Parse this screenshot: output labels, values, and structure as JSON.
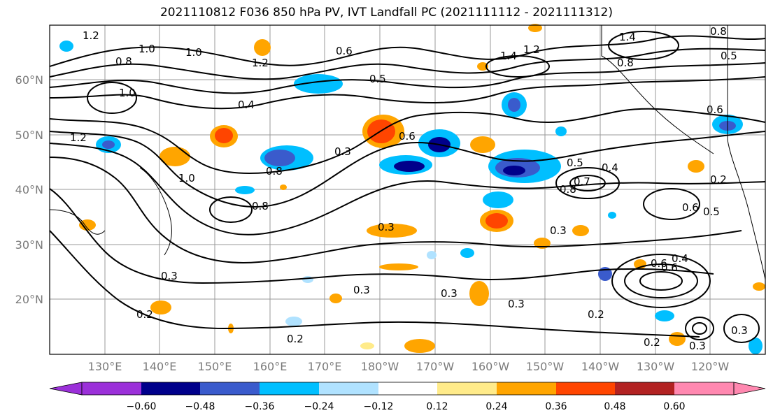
{
  "title": "2021110812 F036 850 hPa PV, IVT Landfall PC (2021111112 - 2021111312)",
  "map": {
    "lat_labels": [
      "60°N",
      "50°N",
      "40°N",
      "30°N",
      "20°N"
    ],
    "lon_labels": [
      "130°E",
      "140°E",
      "150°E",
      "160°E",
      "170°E",
      "180°W",
      "170°W",
      "160°W",
      "150°W",
      "140°W",
      "130°W",
      "120°W"
    ],
    "contour_labels": [
      "1.2",
      "1.0",
      "0.8",
      "1.0",
      "0.6",
      "1.2",
      "1.4",
      "1.2",
      "1.4",
      "0.8",
      "0.8",
      "0.5",
      "1.0",
      "0.4",
      "0.5",
      "0.6",
      "1.2",
      "1.0",
      "0.8",
      "0.8",
      "0.6",
      "0.3",
      "0.5",
      "0.4",
      "0.6",
      "0.7",
      "0.8",
      "0.3",
      "0.3",
      "0.3",
      "0.6",
      "0.5",
      "0.2",
      "0.3",
      "0.4",
      "0.6",
      "0.3",
      "0.3",
      "0.2",
      "0.2",
      "0.2",
      "0.3",
      "0.2",
      "0.3"
    ]
  },
  "colorbar": {
    "colors": [
      "#9b30d9",
      "#00008b",
      "#3a5bcc",
      "#00bfff",
      "#b0e2ff",
      "#ffffff",
      "#ffeb8a",
      "#ffa500",
      "#ff4500",
      "#b22222",
      "#ff88b0"
    ],
    "ticks": [
      "−0.60",
      "−0.48",
      "−0.36",
      "−0.24",
      "−0.12",
      "0.12",
      "0.24",
      "0.36",
      "0.48",
      "0.60"
    ]
  }
}
